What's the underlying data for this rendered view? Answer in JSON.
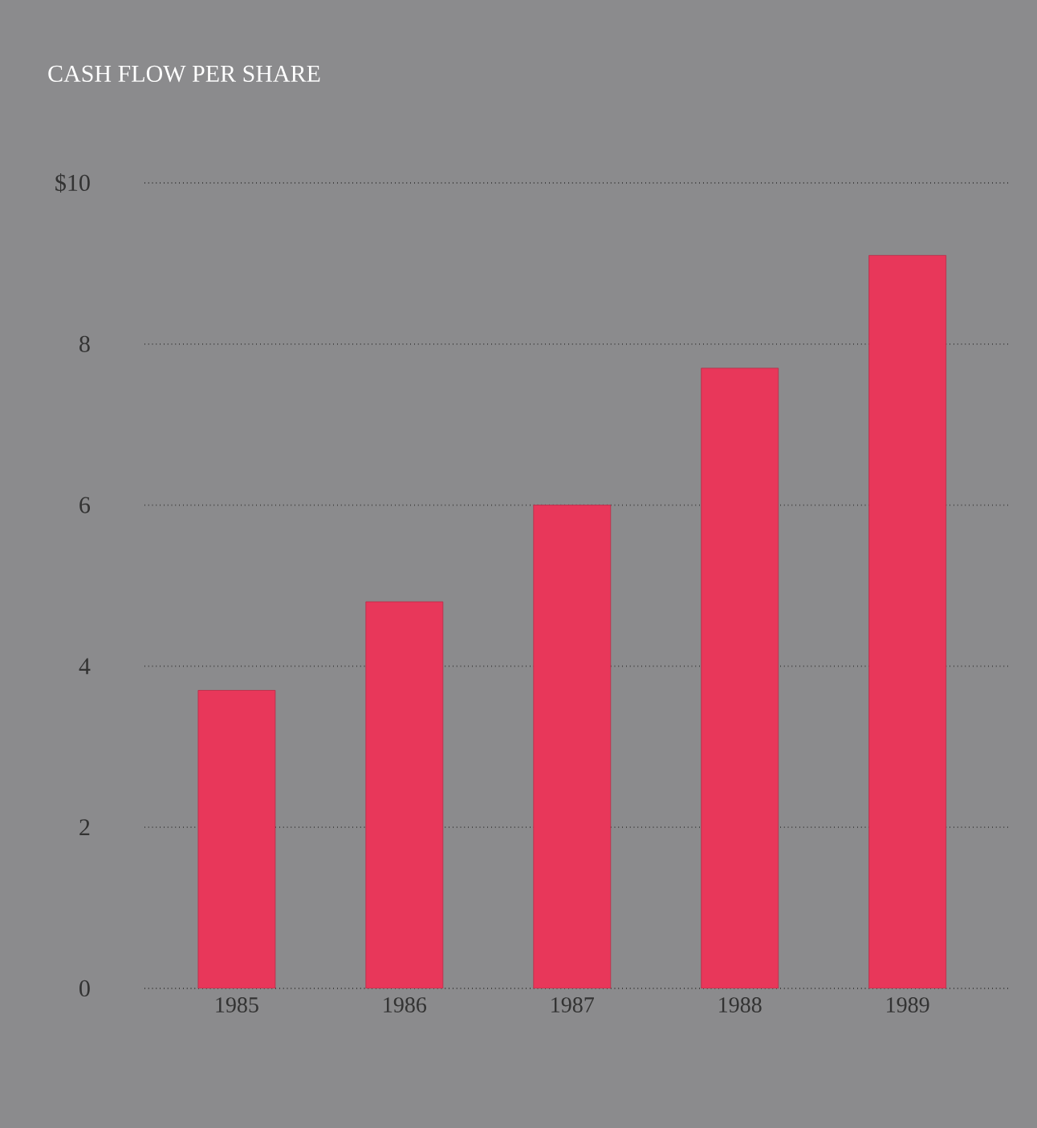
{
  "chart_data": {
    "type": "bar",
    "title": "CASH FLOW PER SHARE",
    "categories": [
      "1985",
      "1986",
      "1987",
      "1988",
      "1989"
    ],
    "values": [
      3.7,
      4.8,
      6.0,
      7.7,
      9.1
    ],
    "color": "#e8375a",
    "ylim": [
      0,
      10
    ],
    "yticks": [
      0,
      2,
      4,
      6,
      8,
      {
        "value": 10,
        "label": "$10"
      }
    ],
    "grid": "y"
  }
}
